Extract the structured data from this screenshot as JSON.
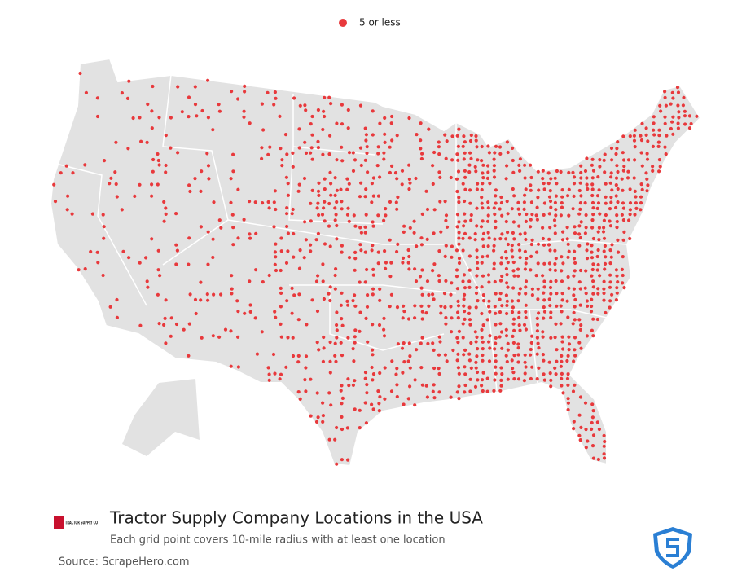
{
  "legend": {
    "label": "5 or less"
  },
  "header": {
    "logo_text": "TRACTOR SUPPLY CO",
    "title": "Tractor Supply Company Locations in the USA",
    "subtitle": "Each grid point covers 10-mile radius with at least one location"
  },
  "footer": {
    "source": "Source: ScrapeHero.com"
  }
}
